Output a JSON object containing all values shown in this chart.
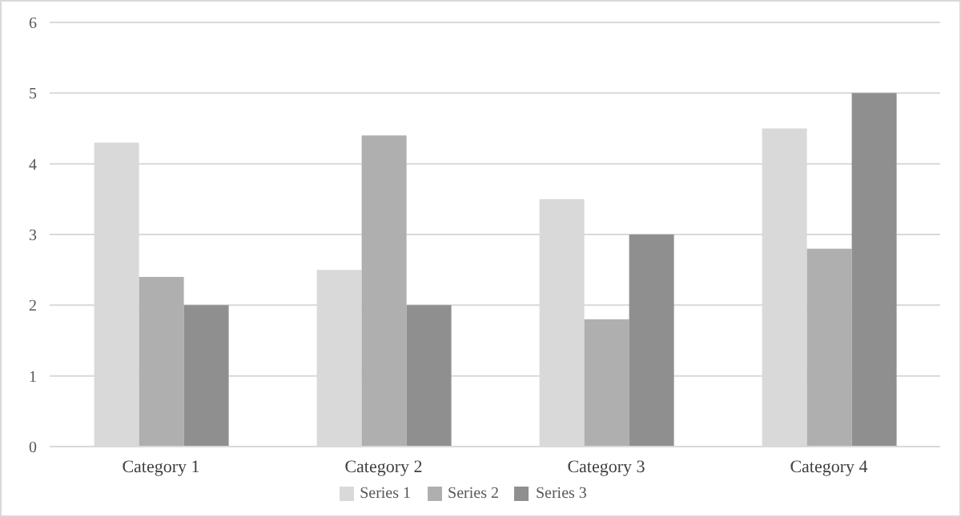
{
  "chart_data": {
    "type": "bar",
    "categories": [
      "Category 1",
      "Category 2",
      "Category 3",
      "Category 4"
    ],
    "series": [
      {
        "name": "Series 1",
        "color": "#d9d9d9",
        "values": [
          4.3,
          2.5,
          3.5,
          4.5
        ]
      },
      {
        "name": "Series 2",
        "color": "#afafaf",
        "values": [
          2.4,
          4.4,
          1.8,
          2.8
        ]
      },
      {
        "name": "Series 3",
        "color": "#8f8f8f",
        "values": [
          2,
          2,
          3,
          5
        ]
      }
    ],
    "ylim": [
      0,
      6
    ],
    "yticks": [
      0,
      1,
      2,
      3,
      4,
      5,
      6
    ],
    "grid": "y",
    "legend": "bottom"
  }
}
